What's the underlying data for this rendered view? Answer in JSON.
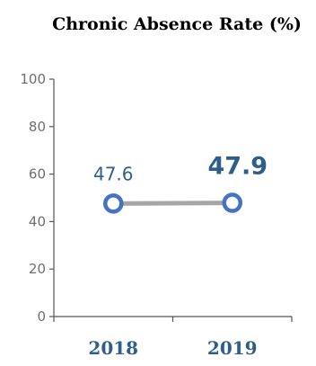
{
  "chart_data": {
    "type": "line",
    "title": "Chronic Absence Rate (%)",
    "categories": [
      "2018",
      "2019"
    ],
    "values": [
      47.6,
      47.9
    ],
    "data_labels": [
      "47.6",
      "47.9"
    ],
    "ylim": [
      0,
      100
    ],
    "yticks": [
      "0",
      "20",
      "40",
      "60",
      "80",
      "100"
    ],
    "xlabel": "",
    "ylabel": "",
    "grid": false,
    "colors": {
      "line": "#a6a6a6",
      "marker": "#4472c4",
      "label": "#2e5e8c",
      "axis": "#555555"
    }
  }
}
